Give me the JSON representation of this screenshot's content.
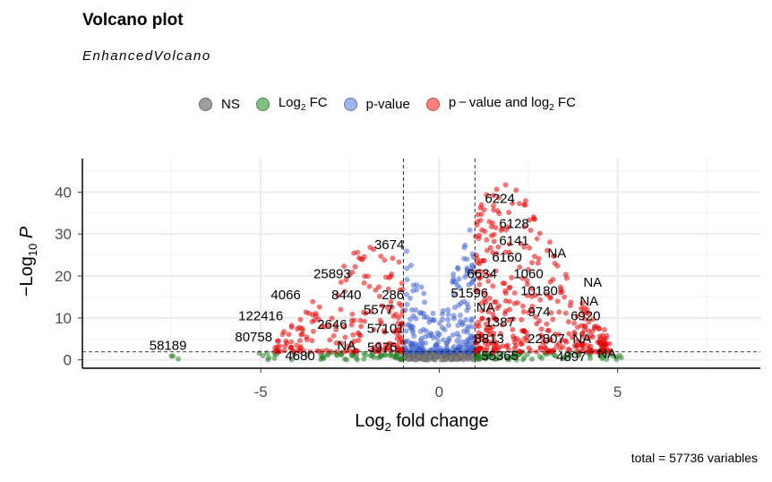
{
  "title": "Volcano plot",
  "subtitle": "EnhancedVolcano",
  "caption": "total = 57736 variables",
  "legend": [
    {
      "key": "ns",
      "label": "NS",
      "color": "#808080"
    },
    {
      "key": "fc",
      "label_main": "Log",
      "label_sub": "2",
      "label_tail": " FC",
      "color": "#228B22"
    },
    {
      "key": "p",
      "label": "p-value",
      "color": "#4169E1"
    },
    {
      "key": "pfc",
      "label_main": "p − value and log",
      "label_sub": "2",
      "label_tail": " FC",
      "color": "#FF0000"
    }
  ],
  "chart_data": {
    "type": "scatter",
    "title": "Volcano plot",
    "subtitle": "EnhancedVolcano",
    "xlabel_main": "Log",
    "xlabel_sub": "2",
    "xlabel_tail": " fold change",
    "ylabel_main": "−Log",
    "ylabel_sub": "10",
    "ylabel_tail": " P",
    "xlim": [
      -10,
      9
    ],
    "ylim": [
      -2,
      48
    ],
    "x_ticks": [
      -5,
      0,
      5
    ],
    "x_tick_labels": [
      "-5",
      "0",
      "5"
    ],
    "y_ticks": [
      0,
      10,
      20,
      30,
      40
    ],
    "y_tick_labels": [
      "0",
      "10",
      "20",
      "30",
      "40"
    ],
    "fc_cutoff": [
      -1,
      1
    ],
    "p_cutoff_line": 1.9,
    "grid": true,
    "legend_position": "top",
    "labels": [
      {
        "text": "6224",
        "x": 1.7,
        "y": 38.5
      },
      {
        "text": "6128",
        "x": 2.1,
        "y": 32.5
      },
      {
        "text": "6141",
        "x": 2.1,
        "y": 28.5
      },
      {
        "text": "3674",
        "x": -1.4,
        "y": 27.5
      },
      {
        "text": "NA",
        "x": 3.3,
        "y": 25.5
      },
      {
        "text": "6160",
        "x": 1.9,
        "y": 24.5
      },
      {
        "text": "25893",
        "x": -3.0,
        "y": 20.5
      },
      {
        "text": "6634",
        "x": 1.2,
        "y": 20.5
      },
      {
        "text": "1060",
        "x": 2.5,
        "y": 20.5
      },
      {
        "text": "NA",
        "x": 4.3,
        "y": 18.5
      },
      {
        "text": "4066",
        "x": -4.3,
        "y": 15.5
      },
      {
        "text": "8440",
        "x": -2.6,
        "y": 15.5
      },
      {
        "text": "286",
        "x": -1.3,
        "y": 15.5
      },
      {
        "text": "51596",
        "x": 0.85,
        "y": 16.0
      },
      {
        "text": "10180",
        "x": 2.8,
        "y": 16.5
      },
      {
        "text": "NA",
        "x": 4.2,
        "y": 14.0
      },
      {
        "text": "5577",
        "x": -1.7,
        "y": 12.0
      },
      {
        "text": "NA",
        "x": 1.3,
        "y": 12.5
      },
      {
        "text": "974",
        "x": 2.8,
        "y": 11.5
      },
      {
        "text": "122416",
        "x": -5.0,
        "y": 10.5
      },
      {
        "text": "1387",
        "x": 1.7,
        "y": 9.0
      },
      {
        "text": "6920",
        "x": 4.1,
        "y": 10.5
      },
      {
        "text": "2646",
        "x": -3.0,
        "y": 8.5
      },
      {
        "text": "57101",
        "x": -1.5,
        "y": 7.5
      },
      {
        "text": "80758",
        "x": -5.2,
        "y": 5.5
      },
      {
        "text": "8813",
        "x": 1.4,
        "y": 5.0
      },
      {
        "text": "22807",
        "x": 3.0,
        "y": 5.0
      },
      {
        "text": "NA",
        "x": 4.0,
        "y": 5.0
      },
      {
        "text": "58189",
        "x": -7.6,
        "y": 3.5
      },
      {
        "text": "NA",
        "x": -2.6,
        "y": 3.5
      },
      {
        "text": "5976",
        "x": -1.6,
        "y": 3.0
      },
      {
        "text": "4680",
        "x": -3.9,
        "y": 1.0
      },
      {
        "text": "55365",
        "x": 1.7,
        "y": 1.0
      },
      {
        "text": "4897",
        "x": 3.7,
        "y": 0.8
      },
      {
        "text": "NA",
        "x": 4.7,
        "y": 1.5
      }
    ]
  }
}
